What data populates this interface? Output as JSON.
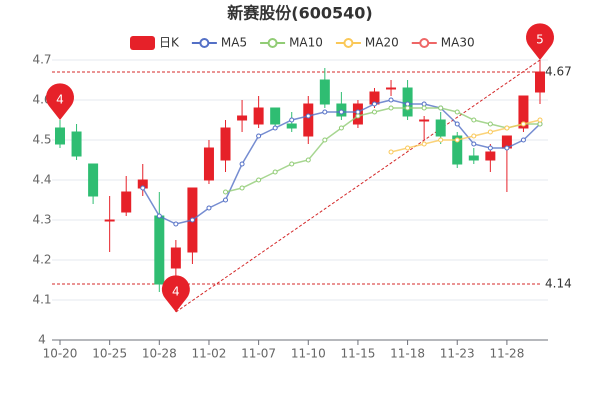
{
  "chart_data": {
    "type": "candlestick",
    "title": "新赛股份(600540)",
    "categories": [
      "10-20",
      null,
      null,
      "10-25",
      null,
      null,
      "10-28",
      null,
      null,
      "11-02",
      null,
      null,
      "11-07",
      null,
      null,
      "11-10",
      null,
      null,
      "11-15",
      null,
      null,
      "11-18",
      null,
      null,
      "11-23",
      null,
      null,
      "11-28",
      null,
      null
    ],
    "kline": {
      "name": "日K",
      "up_color": "#e62129",
      "down_color": "#2fbd72",
      "open": [
        4.53,
        4.52,
        4.44,
        4.3,
        4.32,
        4.38,
        4.31,
        4.18,
        4.22,
        4.4,
        4.45,
        4.55,
        4.54,
        4.58,
        4.54,
        4.51,
        4.65,
        4.59,
        4.54,
        4.59,
        4.63,
        4.63,
        4.55,
        4.55,
        4.51,
        4.46,
        4.45,
        4.48,
        4.53,
        4.62
      ],
      "high": [
        4.55,
        4.54,
        4.44,
        4.36,
        4.41,
        4.44,
        4.37,
        4.25,
        4.38,
        4.5,
        4.55,
        4.6,
        4.61,
        4.58,
        4.57,
        4.61,
        4.68,
        4.62,
        4.6,
        4.63,
        4.65,
        4.65,
        4.56,
        4.57,
        4.52,
        4.48,
        4.49,
        4.51,
        4.61,
        4.7
      ],
      "low": [
        4.48,
        4.45,
        4.34,
        4.22,
        4.31,
        4.36,
        4.12,
        4.07,
        4.19,
        4.39,
        4.42,
        4.52,
        4.53,
        4.53,
        4.52,
        4.49,
        4.58,
        4.55,
        4.53,
        4.58,
        4.61,
        4.55,
        4.5,
        4.49,
        4.43,
        4.44,
        4.42,
        4.37,
        4.52,
        4.59
      ],
      "close": [
        4.49,
        4.46,
        4.36,
        4.3,
        4.37,
        4.4,
        4.14,
        4.23,
        4.38,
        4.48,
        4.53,
        4.56,
        4.58,
        4.54,
        4.53,
        4.59,
        4.59,
        4.56,
        4.59,
        4.62,
        4.63,
        4.56,
        4.55,
        4.51,
        4.44,
        4.45,
        4.47,
        4.51,
        4.61,
        4.67
      ]
    },
    "series": [
      {
        "name": "MA5",
        "color": "#5470c6",
        "values": [
          null,
          null,
          null,
          null,
          null,
          4.38,
          4.31,
          4.29,
          4.3,
          4.33,
          4.35,
          4.44,
          4.51,
          4.53,
          4.55,
          4.56,
          4.57,
          4.57,
          4.57,
          4.59,
          4.6,
          4.59,
          4.59,
          4.58,
          4.54,
          4.49,
          4.48,
          4.48,
          4.5,
          4.54
        ]
      },
      {
        "name": "MA10",
        "color": "#91cc75",
        "values": [
          null,
          null,
          null,
          null,
          null,
          null,
          null,
          null,
          null,
          null,
          4.37,
          4.38,
          4.4,
          4.42,
          4.44,
          4.45,
          4.5,
          4.53,
          4.56,
          4.57,
          4.58,
          4.58,
          4.58,
          4.58,
          4.57,
          4.55,
          4.54,
          4.53,
          4.54,
          4.54
        ]
      },
      {
        "name": "MA20",
        "color": "#fac858",
        "values": [
          null,
          null,
          null,
          null,
          null,
          null,
          null,
          null,
          null,
          null,
          null,
          null,
          null,
          null,
          null,
          null,
          null,
          null,
          null,
          null,
          4.47,
          4.48,
          4.49,
          4.5,
          4.5,
          4.51,
          4.52,
          4.53,
          4.54,
          4.55
        ]
      },
      {
        "name": "MA30",
        "color": "#ee6666",
        "values": [
          null,
          null,
          null,
          null,
          null,
          null,
          null,
          null,
          null,
          null,
          null,
          null,
          null,
          null,
          null,
          null,
          null,
          null,
          null,
          null,
          null,
          null,
          null,
          null,
          null,
          null,
          null,
          null,
          null,
          null
        ]
      }
    ],
    "ylim": [
      4,
      4.7
    ],
    "yticks": [
      4,
      4.1,
      4.2,
      4.3,
      4.4,
      4.5,
      4.6,
      4.7
    ],
    "grid": true,
    "ref_lines": [
      4.67,
      4.14
    ],
    "markers": [
      {
        "label": "4",
        "index": 0,
        "value": 4.55
      },
      {
        "label": "4",
        "index": 7,
        "value": 4.07
      },
      {
        "label": "5",
        "index": 29,
        "value": 4.7
      }
    ]
  }
}
